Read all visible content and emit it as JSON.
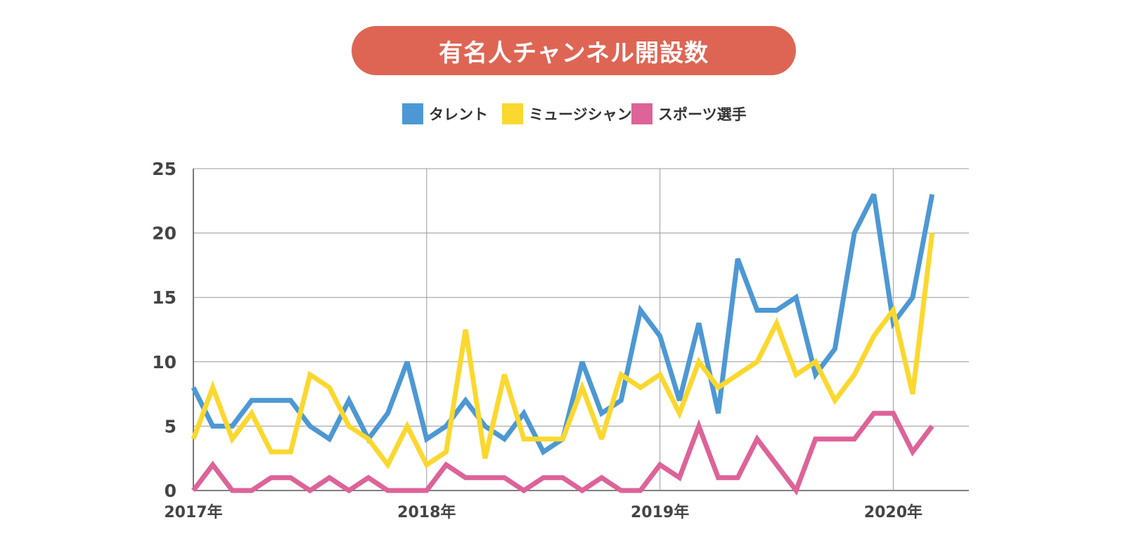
{
  "title": "有名人チャンネル開設数",
  "legend": {
    "items": [
      {
        "label": "タレント",
        "color": "#4d98d4"
      },
      {
        "label": "ミュージシャン",
        "color": "#fbd82f"
      },
      {
        "label": "スポーツ選手",
        "color": "#dd6398"
      }
    ]
  },
  "chart_data": {
    "type": "line",
    "title": "有名人チャンネル開設数",
    "xlabel": "",
    "ylabel": "",
    "ylim": [
      0,
      25
    ],
    "y_ticks": [
      "0",
      "5",
      "10",
      "15",
      "20",
      "25"
    ],
    "y_tick_values": [
      0,
      5,
      10,
      15,
      20,
      25
    ],
    "x_tick_labels": [
      "2017年",
      "2018年",
      "2019年",
      "2020年"
    ],
    "x_tick_months": [
      0,
      12,
      24,
      36
    ],
    "start": "2017-01",
    "end": "2020-03",
    "x_max_month": 40,
    "grid": true,
    "legend_position": "top",
    "series": [
      {
        "name": "タレント",
        "color": "#4d98d4",
        "values": [
          8,
          5,
          5,
          7,
          7,
          7,
          5,
          4,
          7,
          4,
          6,
          10,
          4,
          5,
          7,
          5,
          4,
          6,
          3,
          4,
          10,
          6,
          7,
          14,
          12,
          7,
          13,
          6,
          18,
          14,
          14,
          15,
          9,
          11,
          20,
          23,
          13,
          15,
          23
        ]
      },
      {
        "name": "ミュージシャン",
        "color": "#fbd82f",
        "values": [
          4,
          8,
          4,
          6,
          3,
          3,
          9,
          8,
          5,
          4,
          2,
          5,
          2,
          3,
          12.5,
          2.5,
          9,
          4,
          4,
          4,
          8,
          4,
          9,
          8,
          9,
          6,
          10,
          8,
          9,
          10,
          13,
          9,
          10,
          7,
          9,
          12,
          14,
          7.5,
          20
        ]
      },
      {
        "name": "スポーツ選手",
        "color": "#dd6398",
        "values": [
          0,
          2,
          0,
          0,
          1,
          1,
          0,
          1,
          0,
          1,
          0,
          0,
          0,
          2,
          1,
          1,
          1,
          0,
          1,
          1,
          0,
          1,
          0,
          0,
          2,
          1,
          5,
          1,
          1,
          4,
          2,
          0,
          4,
          4,
          4,
          6,
          6,
          3,
          5
        ]
      }
    ]
  }
}
